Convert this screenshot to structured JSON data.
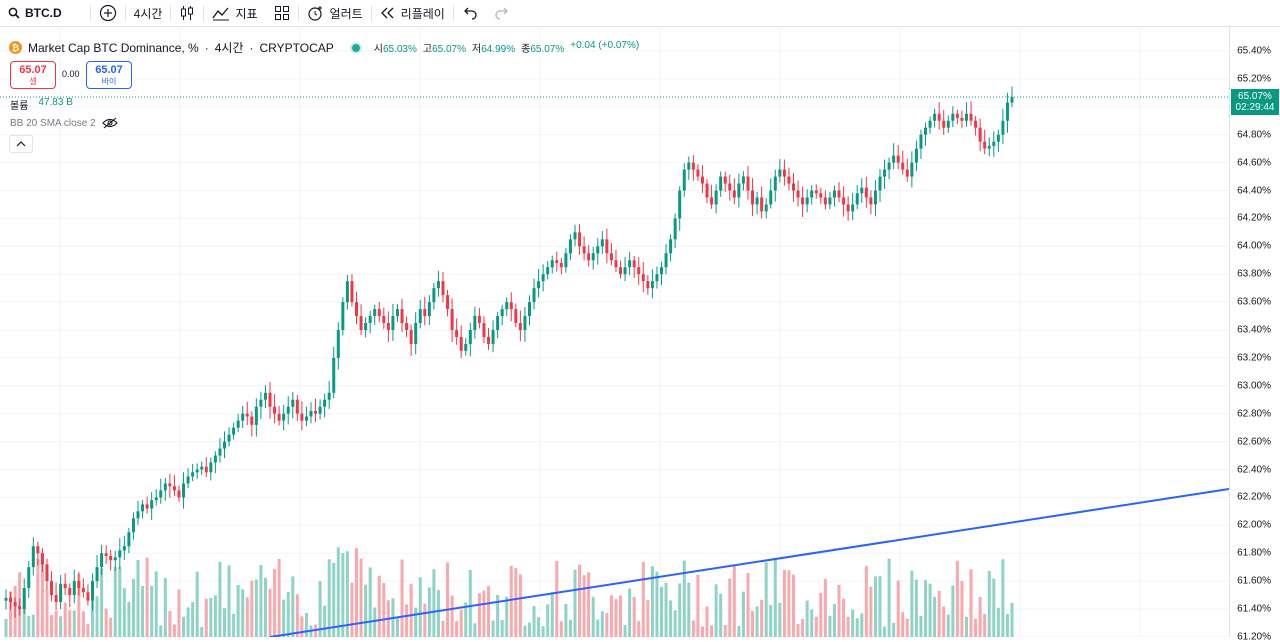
{
  "toolbar": {
    "symbol": "BTC.D",
    "interval": "4시간",
    "indicators_label": "지표",
    "alert_label": "얼러트",
    "replay_label": "리플레이"
  },
  "legend": {
    "title": "Market Cap BTC Dominance, %",
    "sep1": "·",
    "interval": "4시간",
    "sep2": "·",
    "exchange": "CRYPTOCAP",
    "coin_glyph": "₿",
    "open_k": "시",
    "open_v": "65.03%",
    "high_k": "고",
    "high_v": "65.07%",
    "low_k": "저",
    "low_v": "64.99%",
    "close_k": "종",
    "close_v": "65.07%",
    "change": "+0.04 (+0.07%)"
  },
  "trade": {
    "sell_price": "65.07",
    "sell_label": "셀",
    "spread": "0.00",
    "buy_price": "65.07",
    "buy_label": "바이"
  },
  "volume_legend": {
    "label": "볼륨",
    "value": "47.83 B"
  },
  "bb_legend": {
    "label": "BB 20 SMA close 2"
  },
  "price_axis": {
    "labels": [
      "65.40%",
      "65.20%",
      "65.00%",
      "64.80%",
      "64.60%",
      "64.40%",
      "64.20%",
      "64.00%",
      "63.80%",
      "63.60%",
      "63.40%",
      "63.20%",
      "63.00%",
      "62.80%",
      "62.60%",
      "62.40%",
      "62.20%",
      "62.00%",
      "61.80%",
      "61.60%",
      "61.40%",
      "61.20%"
    ],
    "current_price": "65.07%",
    "countdown": "02:29:44"
  },
  "colors": {
    "up": "#089981",
    "down": "#f23645",
    "up_vol": "#8fd3c6",
    "down_vol": "#f7a9ae",
    "trend": "#2962ff"
  },
  "chart_data": {
    "type": "candlestick",
    "title": "Market Cap BTC Dominance, %",
    "ylabel": "%",
    "ylim": [
      61.2,
      65.5
    ],
    "closes": [
      61.48,
      61.45,
      61.42,
      61.4,
      61.55,
      61.7,
      61.85,
      61.8,
      61.72,
      61.6,
      61.5,
      61.45,
      61.58,
      61.55,
      61.5,
      61.6,
      61.55,
      61.52,
      61.46,
      61.6,
      61.7,
      61.8,
      61.78,
      61.75,
      61.77,
      61.82,
      61.85,
      61.95,
      62.05,
      62.1,
      62.15,
      62.12,
      62.18,
      62.2,
      62.25,
      62.3,
      62.28,
      62.25,
      62.2,
      62.3,
      62.35,
      62.38,
      62.4,
      62.42,
      62.38,
      62.45,
      62.5,
      62.55,
      62.6,
      62.65,
      62.7,
      62.75,
      62.8,
      62.78,
      62.72,
      62.85,
      62.9,
      62.95,
      62.85,
      62.8,
      62.75,
      62.8,
      62.85,
      62.9,
      62.8,
      62.75,
      62.78,
      62.82,
      62.8,
      62.85,
      62.9,
      62.95,
      63.2,
      63.4,
      63.6,
      63.75,
      63.6,
      63.5,
      63.4,
      63.45,
      63.5,
      63.55,
      63.5,
      63.45,
      63.4,
      63.5,
      63.55,
      63.45,
      63.4,
      63.3,
      63.45,
      63.55,
      63.5,
      63.6,
      63.7,
      63.75,
      63.65,
      63.55,
      63.4,
      63.35,
      63.25,
      63.3,
      63.4,
      63.5,
      63.45,
      63.35,
      63.3,
      63.4,
      63.5,
      63.55,
      63.6,
      63.55,
      63.45,
      63.4,
      63.5,
      63.6,
      63.7,
      63.75,
      63.8,
      63.85,
      63.9,
      63.88,
      63.85,
      63.95,
      64.05,
      64.1,
      64.0,
      63.95,
      63.9,
      63.95,
      64.0,
      64.05,
      63.95,
      63.9,
      63.85,
      63.8,
      63.85,
      63.9,
      63.85,
      63.8,
      63.75,
      63.7,
      63.75,
      63.8,
      63.85,
      63.95,
      64.05,
      64.2,
      64.4,
      64.55,
      64.6,
      64.55,
      64.5,
      64.45,
      64.35,
      64.3,
      64.4,
      64.5,
      64.45,
      64.4,
      64.35,
      64.45,
      64.5,
      64.4,
      64.3,
      64.35,
      64.25,
      64.3,
      64.4,
      64.5,
      64.55,
      64.5,
      64.45,
      64.4,
      64.35,
      64.3,
      64.35,
      64.4,
      64.38,
      64.35,
      64.3,
      64.35,
      64.4,
      64.35,
      64.3,
      64.25,
      64.3,
      64.38,
      64.42,
      64.35,
      64.3,
      64.4,
      64.5,
      64.55,
      64.6,
      64.65,
      64.6,
      64.55,
      64.5,
      64.6,
      64.7,
      64.8,
      64.85,
      64.9,
      64.95,
      64.9,
      64.85,
      64.9,
      64.95,
      64.92,
      64.9,
      64.95,
      64.9,
      64.85,
      64.75,
      64.7,
      64.72,
      64.75,
      64.8,
      64.9,
      65.03,
      65.07
    ],
    "series": [
      {
        "name": "BTC.D",
        "kind": "candles"
      },
      {
        "name": "볼륨",
        "kind": "volume"
      },
      {
        "name": "BB 20 SMA close 2",
        "kind": "band"
      }
    ]
  }
}
